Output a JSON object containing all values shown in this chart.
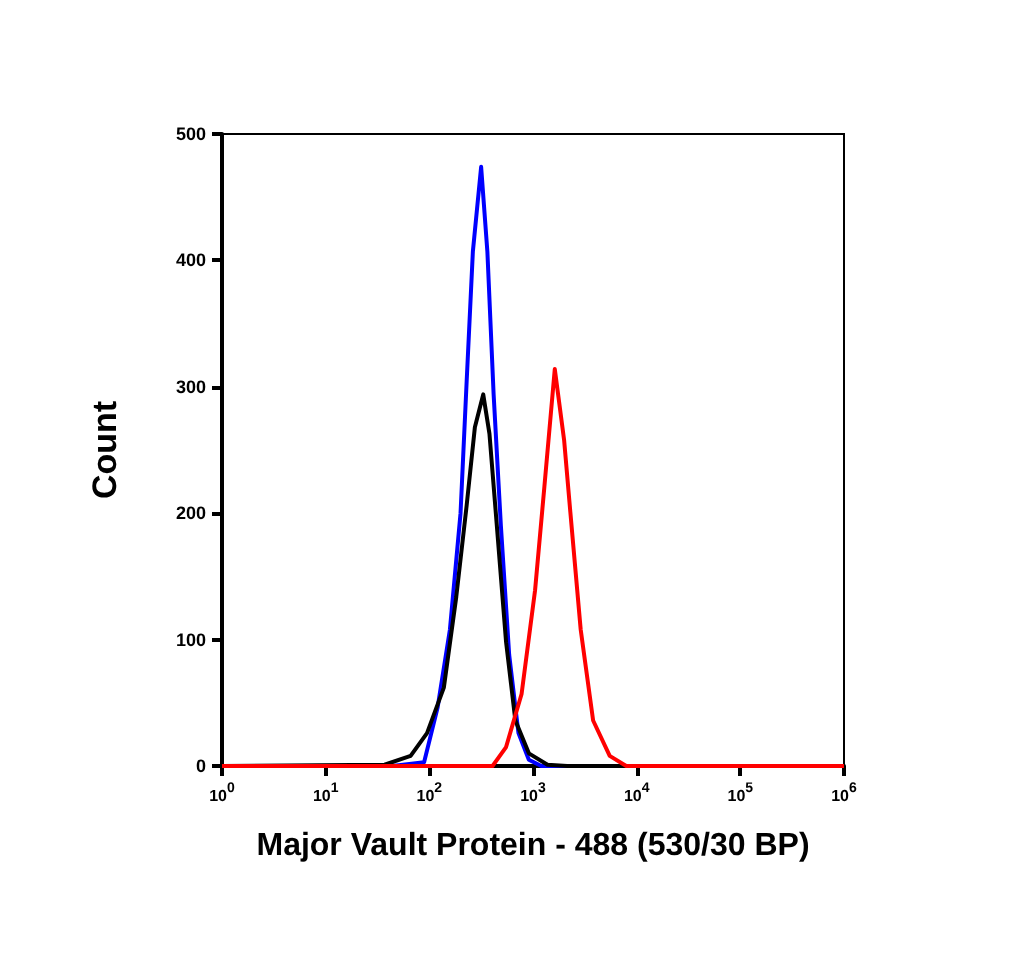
{
  "chart_data": {
    "type": "line",
    "xlabel": "Major Vault Protein - 488 (530/30 BP)",
    "ylabel": "Count",
    "log": "x",
    "marker": "none",
    "line_style": "solid",
    "xlim": [
      1,
      1000000
    ],
    "ylim": [
      0,
      500
    ],
    "xticks": [
      {
        "value": 1,
        "label": "10$^{0}$"
      },
      {
        "value": 10,
        "label": "10$^{1}$"
      },
      {
        "value": 100,
        "label": "10$^{2}$"
      },
      {
        "value": 1000,
        "label": "10$^{3}$"
      },
      {
        "value": 10000,
        "label": "10$^{4}$"
      },
      {
        "value": 100000,
        "label": "10$^{5}$"
      },
      {
        "value": 1000000,
        "label": "10$^{6}$"
      }
    ],
    "yticks": [
      0,
      100,
      200,
      300,
      400,
      500
    ],
    "series": [
      {
        "color": "#0000ff",
        "x": [
          1,
          44,
          89,
          120,
          158,
          200,
          229,
          263,
          316,
          363,
          417,
          490,
          589,
          724,
          912,
          1202,
          1000000
        ],
        "values": [
          0,
          0,
          3,
          46,
          108,
          200,
          304,
          407,
          474,
          407,
          294,
          190,
          88,
          26,
          5,
          0,
          0
        ]
      },
      {
        "color": "#000000",
        "x": [
          1,
          37,
          66,
          95,
          138,
          182,
          229,
          275,
          331,
          380,
          447,
          550,
          676,
          912,
          1380,
          2138,
          1000000
        ],
        "values": [
          0,
          1,
          8,
          26,
          62,
          134,
          206,
          268,
          294,
          263,
          191,
          98,
          36,
          10,
          1,
          0,
          0
        ]
      },
      {
        "color": "#ff0000",
        "x": [
          1,
          407,
          550,
          776,
          1047,
          1288,
          1622,
          1995,
          2291,
          2884,
          3802,
          5495,
          7943,
          1000000
        ],
        "values": [
          0,
          0,
          15,
          57,
          139,
          221,
          314,
          258,
          201,
          108,
          36,
          8,
          0,
          0
        ]
      }
    ]
  }
}
